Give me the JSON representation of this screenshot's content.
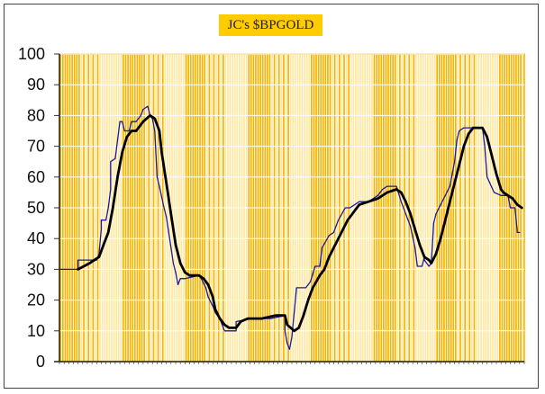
{
  "chart_data": {
    "type": "line",
    "title": "JC's $BPGOLD",
    "xlabel": "",
    "ylabel": "",
    "ylim": [
      0,
      100
    ],
    "yticks": [
      "0",
      "10",
      "20",
      "30",
      "40",
      "50",
      "60",
      "70",
      "80",
      "90",
      "100"
    ],
    "xlim": [
      0,
      200
    ],
    "grid": true,
    "background": "vertical yellow/orange stripes",
    "colors": {
      "stripe_dark": "#f5b400",
      "stripe_light": "#ffe7a0",
      "series_1": "#1a1a9c",
      "series_2": "#000000",
      "title_bg": "#ffcc00"
    },
    "series": [
      {
        "color": "#1a1a9c",
        "points": [
          [
            0,
            30
          ],
          [
            8,
            30
          ],
          [
            8,
            33
          ],
          [
            16,
            33
          ],
          [
            17,
            35
          ],
          [
            18,
            43
          ],
          [
            18,
            46
          ],
          [
            20,
            46
          ],
          [
            21,
            50
          ],
          [
            22,
            56
          ],
          [
            22,
            65
          ],
          [
            24,
            66
          ],
          [
            25,
            72
          ],
          [
            26,
            78
          ],
          [
            27,
            78
          ],
          [
            28,
            75
          ],
          [
            30,
            75
          ],
          [
            31,
            78
          ],
          [
            33,
            78
          ],
          [
            34,
            79
          ],
          [
            35,
            80
          ],
          [
            36,
            82
          ],
          [
            38,
            83
          ],
          [
            39,
            80
          ],
          [
            40,
            79
          ],
          [
            41,
            75
          ],
          [
            42,
            60
          ],
          [
            43,
            57
          ],
          [
            45,
            50
          ],
          [
            46,
            47
          ],
          [
            47,
            42
          ],
          [
            49,
            32
          ],
          [
            50,
            29
          ],
          [
            51,
            25
          ],
          [
            52,
            27
          ],
          [
            54,
            27
          ],
          [
            60,
            28
          ],
          [
            61,
            27
          ],
          [
            63,
            24
          ],
          [
            64,
            21
          ],
          [
            66,
            18
          ],
          [
            67,
            16
          ],
          [
            69,
            14
          ],
          [
            71,
            10
          ],
          [
            76,
            10
          ],
          [
            76,
            13
          ],
          [
            83,
            14
          ],
          [
            91,
            14
          ],
          [
            97,
            15
          ],
          [
            97,
            10
          ],
          [
            98,
            6
          ],
          [
            99,
            4
          ],
          [
            100,
            8
          ],
          [
            102,
            24
          ],
          [
            106,
            24
          ],
          [
            108,
            26
          ],
          [
            110,
            31
          ],
          [
            112,
            31
          ],
          [
            113,
            37
          ],
          [
            116,
            41
          ],
          [
            118,
            42
          ],
          [
            120,
            46
          ],
          [
            123,
            50
          ],
          [
            125,
            50
          ],
          [
            127,
            51
          ],
          [
            129,
            52
          ],
          [
            133,
            52
          ],
          [
            135,
            53
          ],
          [
            137,
            54
          ],
          [
            139,
            56
          ],
          [
            141,
            57
          ],
          [
            145,
            57
          ],
          [
            147,
            52
          ],
          [
            149,
            48
          ],
          [
            151,
            44
          ],
          [
            153,
            37
          ],
          [
            154,
            31
          ],
          [
            156,
            31
          ],
          [
            157,
            34
          ],
          [
            157,
            33
          ],
          [
            159,
            31
          ],
          [
            160,
            32
          ],
          [
            161,
            45
          ],
          [
            162,
            48
          ],
          [
            164,
            51
          ],
          [
            166,
            54
          ],
          [
            168,
            57
          ],
          [
            170,
            65
          ],
          [
            171,
            72
          ],
          [
            172,
            75
          ],
          [
            174,
            76
          ],
          [
            182,
            76
          ],
          [
            183,
            70
          ],
          [
            184,
            60
          ],
          [
            187,
            55
          ],
          [
            190,
            54
          ],
          [
            193,
            54
          ],
          [
            194,
            50
          ],
          [
            196,
            50
          ],
          [
            197,
            42
          ],
          [
            198,
            42
          ]
        ]
      },
      {
        "color": "#000000",
        "points": [
          [
            8,
            30
          ],
          [
            13,
            32
          ],
          [
            17,
            34
          ],
          [
            19,
            38
          ],
          [
            21,
            42
          ],
          [
            23,
            50
          ],
          [
            25,
            60
          ],
          [
            27,
            68
          ],
          [
            29,
            73
          ],
          [
            31,
            75
          ],
          [
            33,
            75
          ],
          [
            34,
            76
          ],
          [
            36,
            78
          ],
          [
            39,
            80
          ],
          [
            41,
            79
          ],
          [
            43,
            75
          ],
          [
            44,
            68
          ],
          [
            46,
            58
          ],
          [
            48,
            48
          ],
          [
            50,
            38
          ],
          [
            52,
            32
          ],
          [
            54,
            29
          ],
          [
            56,
            28
          ],
          [
            60,
            28
          ],
          [
            62,
            27
          ],
          [
            64,
            25
          ],
          [
            66,
            21
          ],
          [
            67,
            17
          ],
          [
            69,
            14
          ],
          [
            71,
            12
          ],
          [
            73,
            11
          ],
          [
            76,
            11
          ],
          [
            78,
            13
          ],
          [
            81,
            14
          ],
          [
            87,
            14
          ],
          [
            93,
            15
          ],
          [
            97,
            15
          ],
          [
            98,
            12
          ],
          [
            101,
            10
          ],
          [
            103,
            11
          ],
          [
            105,
            15
          ],
          [
            107,
            20
          ],
          [
            109,
            24
          ],
          [
            112,
            28
          ],
          [
            114,
            30
          ],
          [
            116,
            34
          ],
          [
            118,
            37
          ],
          [
            120,
            40
          ],
          [
            122,
            43
          ],
          [
            124,
            46
          ],
          [
            126,
            48
          ],
          [
            128,
            50
          ],
          [
            129,
            51
          ],
          [
            133,
            52
          ],
          [
            137,
            53
          ],
          [
            141,
            55
          ],
          [
            145,
            56
          ],
          [
            147,
            55
          ],
          [
            149,
            52
          ],
          [
            151,
            48
          ],
          [
            153,
            43
          ],
          [
            155,
            38
          ],
          [
            157,
            34
          ],
          [
            159,
            33
          ],
          [
            160,
            32
          ],
          [
            162,
            35
          ],
          [
            164,
            40
          ],
          [
            166,
            46
          ],
          [
            168,
            52
          ],
          [
            170,
            58
          ],
          [
            172,
            64
          ],
          [
            174,
            70
          ],
          [
            176,
            74
          ],
          [
            178,
            76
          ],
          [
            182,
            76
          ],
          [
            184,
            73
          ],
          [
            186,
            67
          ],
          [
            188,
            61
          ],
          [
            190,
            56
          ],
          [
            191,
            55
          ],
          [
            193,
            54
          ],
          [
            195,
            53
          ],
          [
            197,
            51
          ],
          [
            199,
            50
          ]
        ]
      }
    ]
  }
}
